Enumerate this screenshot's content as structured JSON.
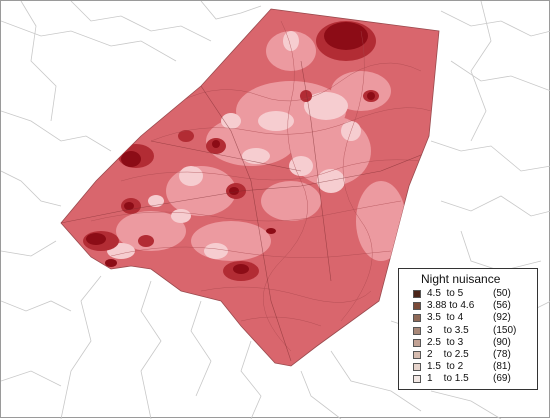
{
  "legend": {
    "title": "Night nuisance",
    "items": [
      {
        "label": "4.5  to 5",
        "count": "(50)",
        "color": "#4a2418"
      },
      {
        "label": "3.88 to 4.6",
        "count": "(56)",
        "color": "#7a4a38"
      },
      {
        "label": "3.5  to 4",
        "count": "(92)",
        "color": "#8f6a58"
      },
      {
        "label": "3    to 3.5",
        "count": "(150)",
        "color": "#a88878"
      },
      {
        "label": "2.5  to 3",
        "count": "(90)",
        "color": "#c2a294"
      },
      {
        "label": "2    to 2.5",
        "count": "(78)",
        "color": "#d6bcb0"
      },
      {
        "label": "1.5  to 2",
        "count": "(81)",
        "color": "#e6d4cc"
      },
      {
        "label": "1    to 1.5",
        "count": "(69)",
        "color": "#f2e8e4"
      }
    ]
  },
  "map_colors": {
    "base": "#d9666d",
    "light": "#ec9aa0",
    "pale": "#f6cdd0",
    "dark": "#b22c34",
    "darkest": "#8c0c16"
  }
}
